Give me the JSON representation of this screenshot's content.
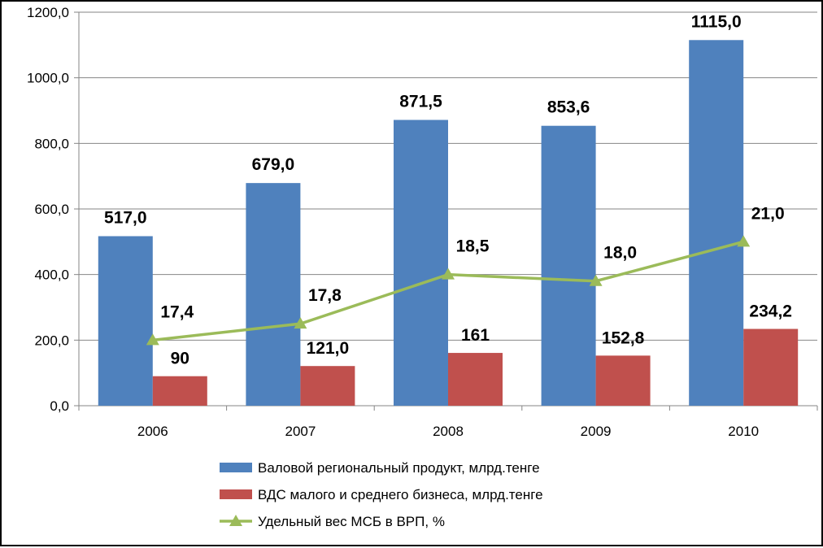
{
  "chart_data": {
    "type": "bar",
    "categories": [
      "2006",
      "2007",
      "2008",
      "2009",
      "2010"
    ],
    "ylim": [
      0,
      1200
    ],
    "yticks": [
      "0,0",
      "200,0",
      "400,0",
      "600,0",
      "800,0",
      "1000,0",
      "1200,0"
    ],
    "grid": true,
    "legend_position": "bottom",
    "series": [
      {
        "name": "Валовой региональный продукт, млрд.тенге",
        "kind": "bar",
        "color": "#4F81BD",
        "values": [
          517.0,
          679.0,
          871.5,
          853.6,
          1115.0
        ],
        "labels": [
          "517,0",
          "679,0",
          "871,5",
          "853,6",
          "1115,0"
        ]
      },
      {
        "name": "ВДС малого и среднего бизнеса, млрд.тенге",
        "kind": "bar",
        "color": "#C0504D",
        "values": [
          90,
          121.0,
          161,
          152.8,
          234.2
        ],
        "labels": [
          "90",
          "121,0",
          "161",
          "152,8",
          "234,2"
        ]
      },
      {
        "name": "Удельный вес МСБ в ВРП, %",
        "kind": "line",
        "color": "#9BBB59",
        "values": [
          17.4,
          17.8,
          18.5,
          18.0,
          21.0
        ],
        "plotted_on_value_axis": [
          200,
          250,
          400,
          380,
          500
        ],
        "labels": [
          "17,4",
          "17,8",
          "18,5",
          "18,0",
          "21,0"
        ]
      }
    ]
  }
}
